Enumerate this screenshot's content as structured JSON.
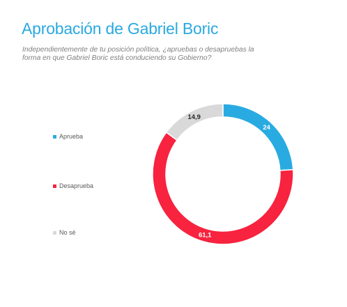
{
  "header": {
    "title": "Aprobación de Gabriel Boric",
    "subtitle": "Independientemente de tu posición política, ¿apruebas o desapruebas la forma en que Gabriel Boric está conduciendo su Gobierno?"
  },
  "chart_data": {
    "type": "donut",
    "title": "Aprobación de Gabriel Boric",
    "legend_position": "left",
    "categories": [
      "Aprueba",
      "Desaprueba",
      "No sé"
    ],
    "values": [
      24,
      61.1,
      14.9
    ],
    "labels": [
      "24",
      "61,1",
      "14,9"
    ],
    "colors": [
      "#29abe2",
      "#f7233f",
      "#d9d9d9"
    ],
    "label_colors": [
      "#ffffff",
      "#ffffff",
      "#262626"
    ]
  }
}
